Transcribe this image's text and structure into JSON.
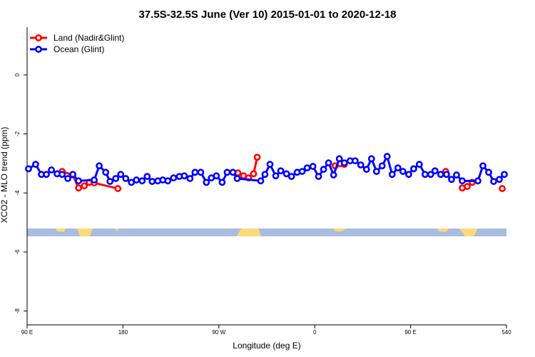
{
  "chart_data": {
    "type": "line",
    "title": "37.5S-32.5S June (Ver 10)   2015-01-01 to 2020-12-18",
    "xlabel": "Longitude (deg E)",
    "ylabel": "XCO2 - MLO trend (ppm)",
    "xlim": [
      90,
      540
    ],
    "ylim": [
      -8.47,
      1.62
    ],
    "xticks": [
      {
        "value": 90,
        "label": "90 E"
      },
      180,
      {
        "value": 270,
        "label": "90 W"
      },
      {
        "value": 360,
        "label": "0"
      },
      {
        "value": 450,
        "label": "90 E"
      },
      540
    ],
    "yticks": [
      0,
      -2,
      -4,
      -6,
      -8
    ],
    "legend": "top-left",
    "series": [
      {
        "name": "Land (Nadir&Glint)",
        "color": "#ff0000",
        "x": [
          122.9,
          132.9,
          138.3,
          143.7,
          148.3,
          153.0,
          175.2,
          null,
          287.9,
          293.2,
          297.9,
          302.6,
          306.0,
          null,
          379.1,
          383.8,
          387.8,
          null,
          483.0,
          null,
          498.5,
          503.2,
          507.8,
          null,
          536.0
        ],
        "values": [
          -3.27,
          -3.39,
          -3.83,
          -3.76,
          -3.64,
          -3.66,
          -3.85,
          null,
          -3.32,
          -3.42,
          -3.49,
          -3.35,
          -2.79,
          null,
          -3.08,
          -3.01,
          -3.03,
          null,
          -3.27,
          null,
          -3.83,
          -3.78,
          -3.64,
          null,
          -3.85
        ]
      },
      {
        "name": "Ocean (Glint)",
        "color": "#0000ff",
        "x": [
          91.3,
          98.0,
          103.4,
          108.1,
          112.8,
          118.2,
          122.9,
          128.2,
          132.9,
          138.3,
          153.0,
          157.7,
          163.8,
          167.8,
          173.2,
          177.9,
          182.6,
          187.9,
          192.6,
          198.0,
          202.7,
          207.4,
          212.7,
          217.4,
          222.1,
          227.5,
          232.9,
          237.6,
          242.9,
          247.6,
          253.0,
          258.3,
          263.0,
          267.7,
          273.1,
          277.8,
          283.2,
          287.2,
          309.3,
          313.3,
          318.0,
          323.4,
          328.1,
          333.5,
          338.2,
          343.5,
          348.2,
          352.9,
          358.3,
          363.6,
          368.3,
          373.0,
          377.7,
          383.1,
          387.8,
          393.2,
          397.9,
          403.2,
          408.6,
          413.3,
          418.0,
          423.3,
          428.0,
          432.7,
          438.1,
          442.8,
          448.2,
          452.9,
          458.2,
          463.6,
          468.9,
          472.9,
          478.3,
          483.7,
          488.4,
          493.1,
          498.5,
          513.2,
          517.9,
          523.3,
          528.0,
          533.3,
          538.0
        ],
        "values": [
          -3.18,
          -3.03,
          -3.37,
          -3.37,
          -3.22,
          -3.35,
          -3.37,
          -3.51,
          -3.37,
          -3.59,
          -3.56,
          -3.08,
          -3.3,
          -3.61,
          -3.51,
          -3.37,
          -3.51,
          -3.64,
          -3.56,
          -3.59,
          -3.44,
          -3.61,
          -3.59,
          -3.56,
          -3.59,
          -3.49,
          -3.44,
          -3.42,
          -3.51,
          -3.3,
          -3.3,
          -3.64,
          -3.49,
          -3.42,
          -3.64,
          -3.3,
          -3.3,
          -3.51,
          -3.59,
          -3.37,
          -3.03,
          -3.42,
          -3.25,
          -3.35,
          -3.44,
          -3.3,
          -3.27,
          -3.15,
          -3.1,
          -3.44,
          -3.2,
          -2.98,
          -3.39,
          -2.84,
          -2.98,
          -2.91,
          -2.91,
          -3.05,
          -3.2,
          -2.84,
          -3.27,
          -3.08,
          -2.76,
          -3.37,
          -3.15,
          -3.27,
          -3.37,
          -3.18,
          -3.03,
          -3.37,
          -3.37,
          -3.25,
          -3.37,
          -3.37,
          -3.54,
          -3.39,
          -3.59,
          -3.59,
          -3.08,
          -3.3,
          -3.61,
          -3.54,
          -3.37
        ]
      }
    ]
  }
}
